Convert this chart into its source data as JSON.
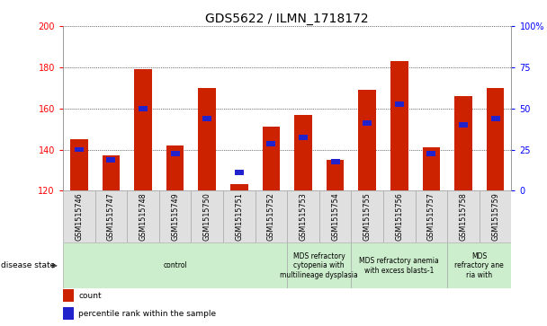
{
  "title": "GDS5622 / ILMN_1718172",
  "samples": [
    "GSM1515746",
    "GSM1515747",
    "GSM1515748",
    "GSM1515749",
    "GSM1515750",
    "GSM1515751",
    "GSM1515752",
    "GSM1515753",
    "GSM1515754",
    "GSM1515755",
    "GSM1515756",
    "GSM1515757",
    "GSM1515758",
    "GSM1515759"
  ],
  "counts": [
    145,
    137,
    179,
    142,
    170,
    123,
    151,
    157,
    135,
    169,
    183,
    141,
    166,
    170
  ],
  "percentile_y": [
    140,
    135,
    160,
    138,
    155,
    129,
    143,
    146,
    134,
    153,
    162,
    138,
    152,
    155
  ],
  "ymin": 120,
  "ymax": 200,
  "yticks_left": [
    120,
    140,
    160,
    180,
    200
  ],
  "yticks_right_pct": [
    0,
    25,
    50,
    75,
    100
  ],
  "bar_color": "#cc2200",
  "percentile_color": "#2222cc",
  "group_color": "#cceecc",
  "group_border": "#aaaaaa",
  "col_bg": "#e0e0e0",
  "col_border": "#aaaaaa",
  "disease_groups": [
    {
      "label": "control",
      "start": 0,
      "end": 7
    },
    {
      "label": "MDS refractory\ncytopenia with\nmultilineage dysplasia",
      "start": 7,
      "end": 9
    },
    {
      "label": "MDS refractory anemia\nwith excess blasts-1",
      "start": 9,
      "end": 12
    },
    {
      "label": "MDS\nrefractory ane\nria with",
      "start": 12,
      "end": 14
    }
  ],
  "legend1_label": "count",
  "legend1_color": "#cc2200",
  "legend2_label": "percentile rank within the sample",
  "legend2_color": "#2222cc",
  "disease_state_label": "disease state",
  "title_fontsize": 10,
  "ytick_fontsize": 7,
  "sample_fontsize": 5.8,
  "disease_fontsize": 5.5,
  "legend_fontsize": 6.5
}
